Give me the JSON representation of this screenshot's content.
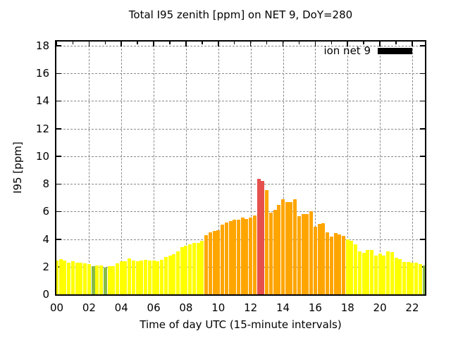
{
  "title": "Total I95 zenith [ppm] on NET 9, DoY=280",
  "legend": {
    "label": "ion net 9",
    "swatch_color": "#000000"
  },
  "chart_data": {
    "type": "bar",
    "title": "Total I95 zenith [ppm] on NET 9, DoY=280",
    "xlabel": "Time of day UTC (15-minute intervals)",
    "ylabel": "I95 [ppm]",
    "ylim": [
      0,
      18.3
    ],
    "yticks": [
      0,
      2,
      4,
      6,
      8,
      10,
      12,
      14,
      16,
      18
    ],
    "xtick_hours": [
      0,
      2,
      4,
      6,
      8,
      10,
      12,
      14,
      16,
      18,
      20,
      22
    ],
    "xtick_labels": [
      "00",
      "02",
      "04",
      "06",
      "08",
      "10",
      "12",
      "14",
      "16",
      "18",
      "20",
      "22"
    ],
    "grid": true,
    "legend_position": "top-right",
    "interval_minutes": 15,
    "colors": {
      "y": "#ffff00",
      "o": "#ffa500",
      "r": "#e5504d",
      "g": "#86bb4a"
    },
    "bars": [
      [
        "00:00",
        2.45,
        "y"
      ],
      [
        "00:15",
        2.55,
        "y"
      ],
      [
        "00:30",
        2.45,
        "y"
      ],
      [
        "00:45",
        2.3,
        "y"
      ],
      [
        "01:00",
        2.4,
        "y"
      ],
      [
        "01:15",
        2.3,
        "y"
      ],
      [
        "01:30",
        2.3,
        "y"
      ],
      [
        "01:45",
        2.25,
        "y"
      ],
      [
        "02:00",
        2.2,
        "y"
      ],
      [
        "02:15",
        2.05,
        "g"
      ],
      [
        "02:30",
        2.1,
        "y"
      ],
      [
        "02:45",
        2.1,
        "y"
      ],
      [
        "03:00",
        1.95,
        "g"
      ],
      [
        "03:15",
        2.05,
        "y"
      ],
      [
        "03:30",
        2.05,
        "y"
      ],
      [
        "03:45",
        2.25,
        "y"
      ],
      [
        "04:00",
        2.4,
        "y"
      ],
      [
        "04:15",
        2.4,
        "y"
      ],
      [
        "04:30",
        2.6,
        "y"
      ],
      [
        "04:45",
        2.45,
        "y"
      ],
      [
        "05:00",
        2.4,
        "y"
      ],
      [
        "05:15",
        2.45,
        "y"
      ],
      [
        "05:30",
        2.5,
        "y"
      ],
      [
        "05:45",
        2.45,
        "y"
      ],
      [
        "06:00",
        2.45,
        "y"
      ],
      [
        "06:15",
        2.4,
        "y"
      ],
      [
        "06:30",
        2.5,
        "y"
      ],
      [
        "06:45",
        2.7,
        "y"
      ],
      [
        "07:00",
        2.8,
        "y"
      ],
      [
        "07:15",
        2.9,
        "y"
      ],
      [
        "07:30",
        3.1,
        "y"
      ],
      [
        "07:45",
        3.4,
        "y"
      ],
      [
        "08:00",
        3.5,
        "y"
      ],
      [
        "08:15",
        3.6,
        "y"
      ],
      [
        "08:30",
        3.7,
        "y"
      ],
      [
        "08:45",
        3.7,
        "y"
      ],
      [
        "09:00",
        3.9,
        "y"
      ],
      [
        "09:15",
        4.3,
        "o"
      ],
      [
        "09:30",
        4.5,
        "o"
      ],
      [
        "09:45",
        4.6,
        "o"
      ],
      [
        "10:00",
        4.65,
        "o"
      ],
      [
        "10:15",
        5.05,
        "o"
      ],
      [
        "10:30",
        5.2,
        "o"
      ],
      [
        "10:45",
        5.3,
        "o"
      ],
      [
        "11:00",
        5.4,
        "o"
      ],
      [
        "11:15",
        5.4,
        "o"
      ],
      [
        "11:30",
        5.55,
        "o"
      ],
      [
        "11:45",
        5.45,
        "o"
      ],
      [
        "12:00",
        5.55,
        "o"
      ],
      [
        "12:15",
        5.7,
        "o"
      ],
      [
        "12:30",
        8.35,
        "r"
      ],
      [
        "12:45",
        8.2,
        "r"
      ],
      [
        "13:00",
        7.55,
        "o"
      ],
      [
        "13:15",
        5.9,
        "o"
      ],
      [
        "13:30",
        6.1,
        "o"
      ],
      [
        "13:45",
        6.5,
        "o"
      ],
      [
        "14:00",
        6.9,
        "o"
      ],
      [
        "14:15",
        6.7,
        "o"
      ],
      [
        "14:30",
        6.7,
        "o"
      ],
      [
        "14:45",
        6.9,
        "o"
      ],
      [
        "15:00",
        5.65,
        "o"
      ],
      [
        "15:15",
        5.8,
        "o"
      ],
      [
        "15:30",
        5.8,
        "o"
      ],
      [
        "15:45",
        6.0,
        "o"
      ],
      [
        "16:00",
        4.9,
        "o"
      ],
      [
        "16:15",
        5.1,
        "o"
      ],
      [
        "16:30",
        5.15,
        "o"
      ],
      [
        "16:45",
        4.5,
        "o"
      ],
      [
        "17:00",
        4.2,
        "o"
      ],
      [
        "17:15",
        4.45,
        "o"
      ],
      [
        "17:30",
        4.35,
        "o"
      ],
      [
        "17:45",
        4.25,
        "o"
      ],
      [
        "18:00",
        4.0,
        "y"
      ],
      [
        "18:15",
        3.85,
        "y"
      ],
      [
        "18:30",
        3.6,
        "y"
      ],
      [
        "18:45",
        3.1,
        "y"
      ],
      [
        "19:00",
        3.0,
        "y"
      ],
      [
        "19:15",
        3.2,
        "y"
      ],
      [
        "19:30",
        3.2,
        "y"
      ],
      [
        "19:45",
        2.8,
        "y"
      ],
      [
        "20:00",
        2.95,
        "y"
      ],
      [
        "20:15",
        2.8,
        "y"
      ],
      [
        "20:30",
        3.1,
        "y"
      ],
      [
        "20:45",
        3.05,
        "y"
      ],
      [
        "21:00",
        2.65,
        "y"
      ],
      [
        "21:15",
        2.55,
        "y"
      ],
      [
        "21:30",
        2.35,
        "y"
      ],
      [
        "21:45",
        2.35,
        "y"
      ],
      [
        "22:00",
        2.3,
        "y"
      ],
      [
        "22:15",
        2.3,
        "y"
      ],
      [
        "22:30",
        2.2,
        "y"
      ],
      [
        "22:45",
        2.1,
        "g"
      ]
    ]
  }
}
